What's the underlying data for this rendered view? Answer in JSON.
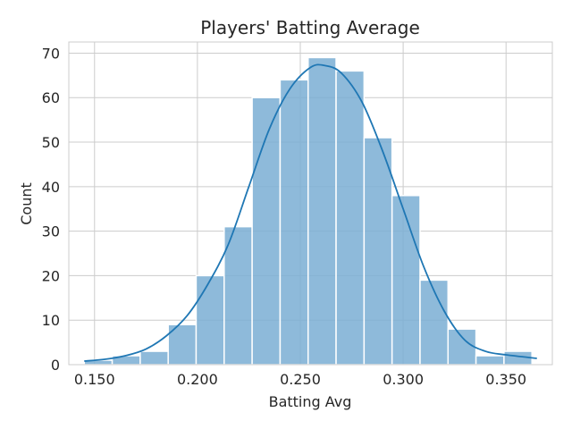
{
  "chart_data": {
    "type": "bar",
    "title": "Players' Batting Average",
    "xlabel": "Batting Avg",
    "ylabel": "Count",
    "xlim": [
      0.1375,
      0.3725
    ],
    "ylim": [
      0,
      72.5
    ],
    "xticks": [
      "0.150",
      "0.200",
      "0.250",
      "0.300",
      "0.350"
    ],
    "yticks": [
      "0",
      "10",
      "20",
      "30",
      "40",
      "50",
      "60",
      "70"
    ],
    "xtick_values": [
      0.15,
      0.2,
      0.25,
      0.3,
      0.35
    ],
    "ytick_values": [
      0,
      10,
      20,
      30,
      40,
      50,
      60,
      70
    ],
    "grid": true,
    "bins": [
      {
        "start": 0.145,
        "end": 0.1586,
        "count": 1
      },
      {
        "start": 0.1586,
        "end": 0.1722,
        "count": 2
      },
      {
        "start": 0.1722,
        "end": 0.1858,
        "count": 3
      },
      {
        "start": 0.1858,
        "end": 0.1994,
        "count": 9
      },
      {
        "start": 0.1994,
        "end": 0.213,
        "count": 20
      },
      {
        "start": 0.213,
        "end": 0.2266,
        "count": 31
      },
      {
        "start": 0.2266,
        "end": 0.2402,
        "count": 60
      },
      {
        "start": 0.2402,
        "end": 0.2538,
        "count": 64
      },
      {
        "start": 0.2538,
        "end": 0.2674,
        "count": 69
      },
      {
        "start": 0.2674,
        "end": 0.281,
        "count": 66
      },
      {
        "start": 0.281,
        "end": 0.2946,
        "count": 51
      },
      {
        "start": 0.2946,
        "end": 0.3082,
        "count": 38
      },
      {
        "start": 0.3082,
        "end": 0.3218,
        "count": 19
      },
      {
        "start": 0.3218,
        "end": 0.3354,
        "count": 8
      },
      {
        "start": 0.3354,
        "end": 0.349,
        "count": 2
      },
      {
        "start": 0.349,
        "end": 0.3626,
        "count": 3
      }
    ],
    "kde": {
      "x": [
        0.145,
        0.155,
        0.165,
        0.175,
        0.185,
        0.195,
        0.205,
        0.215,
        0.225,
        0.235,
        0.245,
        0.255,
        0.262,
        0.27,
        0.28,
        0.29,
        0.3,
        0.31,
        0.32,
        0.33,
        0.34,
        0.35,
        0.365
      ],
      "y": [
        0.8,
        1.2,
        2.0,
        3.5,
        6.5,
        11,
        18,
        27,
        40,
        53,
        62,
        66.8,
        67.2,
        65.5,
        59,
        48,
        35,
        22,
        12,
        5.5,
        3.0,
        2.2,
        1.4
      ]
    },
    "colors": {
      "bar": "#7aaed4",
      "kde": "#1f77b4",
      "grid": "#cccccc"
    }
  }
}
